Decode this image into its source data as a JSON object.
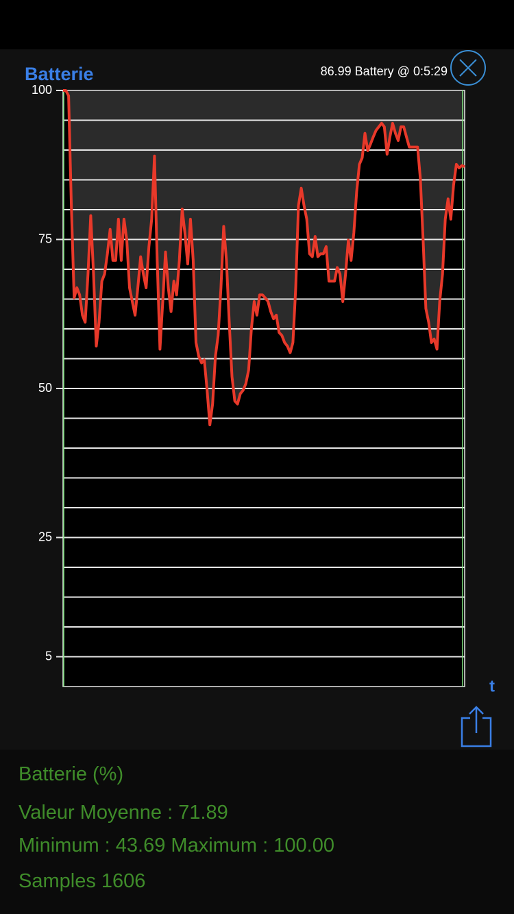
{
  "chart_data": {
    "type": "line",
    "title": "Batterie",
    "subtitle": "86.99 Battery @ 0:5:29",
    "x_label": "t",
    "ylim": [
      0,
      100
    ],
    "yticks": [
      100,
      75,
      50,
      25,
      5
    ],
    "ygrid": [
      5,
      10,
      15,
      20,
      25,
      30,
      35,
      40,
      45,
      50,
      55,
      60,
      65,
      70,
      75,
      80,
      85,
      90,
      95
    ],
    "series": [
      {
        "name": "Battery",
        "color": "#e8392a",
        "values": [
          100,
          100,
          99.1,
          80.7,
          65.2,
          66.9,
          65.7,
          62.3,
          61.1,
          69.2,
          79.0,
          69.2,
          57.1,
          61.1,
          68.0,
          69.2,
          72.6,
          76.7,
          71.5,
          71.5,
          78.4,
          71.5,
          78.4,
          74.9,
          66.9,
          64.6,
          62.3,
          66.9,
          72.1,
          69.2,
          66.9,
          73.8,
          78.4,
          89.0,
          71.5,
          56.6,
          64.6,
          72.9,
          66.9,
          62.9,
          68.0,
          65.7,
          71.5,
          80.1,
          76.1,
          70.9,
          78.4,
          71.5,
          57.7,
          55.4,
          54.3,
          54.8,
          49.7,
          43.9,
          47.4,
          55.4,
          58.9,
          66.9,
          77.2,
          71.5,
          61.1,
          52.0,
          47.9,
          47.4,
          49.1,
          49.7,
          50.8,
          53.1,
          60.0,
          64.6,
          62.3,
          65.7,
          65.7,
          65.2,
          64.6,
          62.9,
          61.7,
          62.3,
          59.4,
          58.9,
          57.7,
          57.1,
          56.0,
          57.7,
          66.9,
          80.7,
          83.6,
          80.7,
          78.4,
          72.6,
          72.1,
          75.5,
          72.1,
          72.6,
          72.6,
          73.8,
          68.0,
          68.0,
          68.0,
          70.3,
          69.2,
          64.6,
          69.2,
          74.9,
          71.5,
          76.1,
          83.0,
          87.6,
          88.7,
          92.8,
          89.9,
          91.0,
          92.2,
          93.3,
          93.9,
          94.5,
          93.9,
          89.3,
          92.2,
          94.5,
          92.8,
          91.6,
          93.9,
          93.9,
          92.2,
          90.5,
          90.5,
          90.5,
          90.5,
          85.3,
          74.9,
          63.4,
          61.1,
          57.7,
          58.3,
          56.6,
          64.6,
          69.2,
          78.4,
          81.8,
          78.4,
          84.1,
          87.6,
          87.0,
          87.4,
          87.2
        ]
      }
    ],
    "area_color": "#2b2b2b",
    "grid": true
  },
  "stats": {
    "heading": "Batterie (%)",
    "mean": "Valeur Moyenne : 71.89",
    "range": "Minimum : 43.69 Maximum : 100.00",
    "samples": "Samples 1606"
  }
}
